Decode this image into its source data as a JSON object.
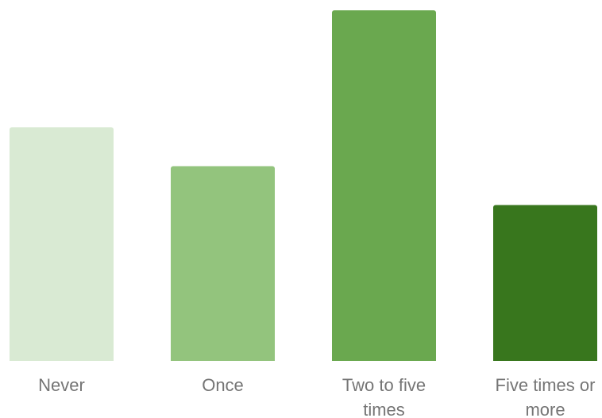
{
  "chart_data": {
    "type": "bar",
    "categories": [
      "Never",
      "Once",
      "Two to five times",
      "Five times or more"
    ],
    "category_label_lines": [
      [
        "Never"
      ],
      [
        "Once"
      ],
      [
        "Two to five",
        "times"
      ],
      [
        "Five times or",
        "more"
      ]
    ],
    "values": [
      30,
      25,
      45,
      20
    ],
    "ylim": [
      0,
      45
    ],
    "bar_colors": [
      "#d9ead3",
      "#93c47d",
      "#6aa84f",
      "#38761d"
    ],
    "title": "",
    "xlabel": "",
    "ylabel": "",
    "grid": false,
    "legend": "none"
  }
}
